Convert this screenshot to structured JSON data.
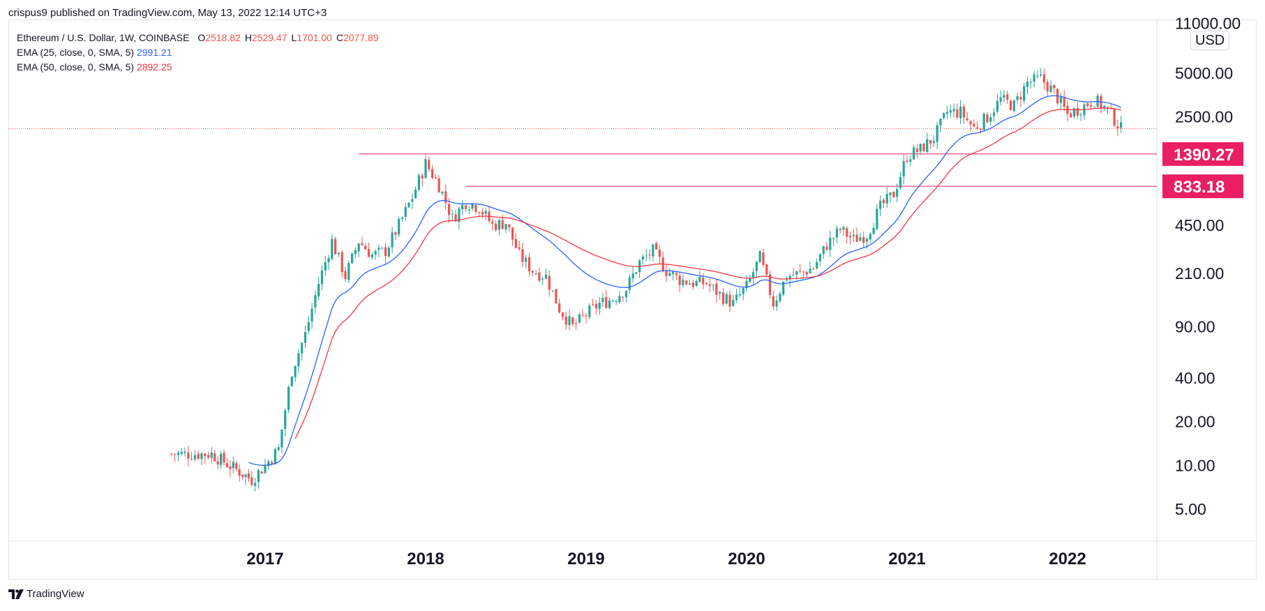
{
  "header": {
    "credit": "crispus9 published on TradingView.com, May 13, 2022 12:14 UTC+3"
  },
  "legend": {
    "symbol": "Ethereum / U.S. Dollar, 1W, COINBASE",
    "ohlc": [
      {
        "label": "O",
        "value": "2518.82"
      },
      {
        "label": "H",
        "value": "2529.47"
      },
      {
        "label": "L",
        "value": "1701.00"
      },
      {
        "label": "C",
        "value": "2077.89"
      }
    ],
    "ema25": {
      "label": "EMA (25, close, 0, SMA, 5)",
      "value": "2991.21"
    },
    "ema50": {
      "label": "EMA (50, close, 0, SMA, 5)",
      "value": "2892.25"
    }
  },
  "price_axis": {
    "unit": "USD"
  },
  "footer": {
    "brand": "TradingView"
  },
  "colors": {
    "up": "#26a69a",
    "down": "#ef5350",
    "ema25": "#2962ff",
    "ema50": "#f23645",
    "level_line": "#e91e63",
    "label_bg": "#e91e63",
    "price_line": "#ef5350"
  },
  "chart_data": {
    "type": "candlestick",
    "scale": "log",
    "ylim": [
      3,
      12000
    ],
    "y_ticks": [
      "11000.00",
      "5000.00",
      "2500.00",
      "450.00",
      "210.00",
      "90.00",
      "40.00",
      "20.00",
      "10.00",
      "5.00"
    ],
    "x_ticks": [
      "2017",
      "2018",
      "2019",
      "2020",
      "2021",
      "2022"
    ],
    "horizontal_levels": [
      {
        "label": "1390.27",
        "value": 1390.27,
        "from": "2017-08"
      },
      {
        "label": "833.18",
        "value": 833.18,
        "from": "2018-04"
      }
    ],
    "last_price": 2077.89,
    "close_path": [
      [
        "2016-06",
        12
      ],
      [
        "2016-09",
        12
      ],
      [
        "2016-12",
        8
      ],
      [
        "2017-01",
        10
      ],
      [
        "2017-02",
        13
      ],
      [
        "2017-03",
        45
      ],
      [
        "2017-04",
        80
      ],
      [
        "2017-05",
        180
      ],
      [
        "2017-06",
        350
      ],
      [
        "2017-07",
        200
      ],
      [
        "2017-08",
        350
      ],
      [
        "2017-09",
        280
      ],
      [
        "2017-10",
        300
      ],
      [
        "2017-11",
        450
      ],
      [
        "2017-12",
        700
      ],
      [
        "2018-01",
        1200
      ],
      [
        "2018-02",
        850
      ],
      [
        "2018-03",
        500
      ],
      [
        "2018-04",
        650
      ],
      [
        "2018-05",
        600
      ],
      [
        "2018-06",
        450
      ],
      [
        "2018-07",
        470
      ],
      [
        "2018-08",
        280
      ],
      [
        "2018-09",
        220
      ],
      [
        "2018-10",
        200
      ],
      [
        "2018-11",
        120
      ],
      [
        "2018-12",
        90
      ],
      [
        "2019-01",
        110
      ],
      [
        "2019-02",
        130
      ],
      [
        "2019-03",
        140
      ],
      [
        "2019-04",
        165
      ],
      [
        "2019-05",
        250
      ],
      [
        "2019-06",
        300
      ],
      [
        "2019-07",
        220
      ],
      [
        "2019-08",
        190
      ],
      [
        "2019-09",
        180
      ],
      [
        "2019-10",
        180
      ],
      [
        "2019-11",
        150
      ],
      [
        "2019-12",
        130
      ],
      [
        "2020-01",
        170
      ],
      [
        "2020-02",
        270
      ],
      [
        "2020-03",
        130
      ],
      [
        "2020-04",
        200
      ],
      [
        "2020-05",
        210
      ],
      [
        "2020-06",
        230
      ],
      [
        "2020-07",
        330
      ],
      [
        "2020-08",
        420
      ],
      [
        "2020-09",
        360
      ],
      [
        "2020-10",
        390
      ],
      [
        "2020-11",
        600
      ],
      [
        "2020-12",
        740
      ],
      [
        "2021-01",
        1350
      ],
      [
        "2021-02",
        1500
      ],
      [
        "2021-03",
        1800
      ],
      [
        "2021-04",
        2700
      ],
      [
        "2021-05",
        2700
      ],
      [
        "2021-06",
        2100
      ],
      [
        "2021-07",
        2500
      ],
      [
        "2021-08",
        3300
      ],
      [
        "2021-09",
        3000
      ],
      [
        "2021-10",
        4300
      ],
      [
        "2021-11",
        4600
      ],
      [
        "2021-12",
        3700
      ],
      [
        "2022-01",
        2600
      ],
      [
        "2022-02",
        2900
      ],
      [
        "2022-03",
        3300
      ],
      [
        "2022-04",
        2800
      ],
      [
        "2022-05",
        2078
      ]
    ]
  }
}
